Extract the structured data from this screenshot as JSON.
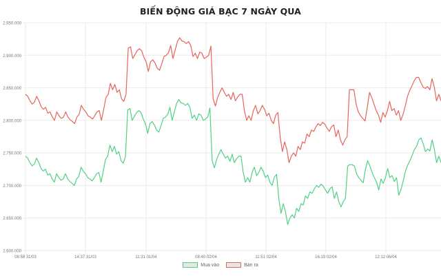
{
  "chart_data": {
    "type": "line",
    "title": "BIẾN ĐỘNG GIÁ BẠC 7 NGÀY QUA",
    "xlabel": "",
    "ylabel": "",
    "ylim": [
      2600000,
      2950000
    ],
    "y_ticks": [
      "2.600.000",
      "2.650.000",
      "2.700.000",
      "2.750.000",
      "2.800.000",
      "2.850.000",
      "2.900.000",
      "2.950.000"
    ],
    "x_tick_labels": [
      "08:58 31/03",
      "14:37 31/03",
      "11:31 01/04",
      "08:40 02/04",
      "11:51 02/04",
      "16:19 02/04",
      "12:12 06/04"
    ],
    "grid": true,
    "legend_position": "bottom",
    "series": [
      {
        "name": "Mua vào",
        "color": "#4fd184",
        "values": [
          2745000,
          2742000,
          2735000,
          2730000,
          2733000,
          2742000,
          2735000,
          2726000,
          2722000,
          2725000,
          2716000,
          2718000,
          2710000,
          2705000,
          2718000,
          2712000,
          2708000,
          2710000,
          2718000,
          2710000,
          2706000,
          2703000,
          2700000,
          2710000,
          2714000,
          2728000,
          2722000,
          2718000,
          2712000,
          2710000,
          2707000,
          2712000,
          2718000,
          2720000,
          2705000,
          2722000,
          2740000,
          2745000,
          2762000,
          2752000,
          2760000,
          2748000,
          2752000,
          2738000,
          2734000,
          2745000,
          2816000,
          2818000,
          2800000,
          2806000,
          2812000,
          2815000,
          2812000,
          2802000,
          2795000,
          2780000,
          2795000,
          2798000,
          2793000,
          2785000,
          2782000,
          2792000,
          2803000,
          2805000,
          2809000,
          2820000,
          2800000,
          2813000,
          2826000,
          2832000,
          2827000,
          2826000,
          2823000,
          2826000,
          2820000,
          2803000,
          2808000,
          2800000,
          2810000,
          2808000,
          2800000,
          2802000,
          2805000,
          2819000,
          2738000,
          2727000,
          2740000,
          2748000,
          2755000,
          2748000,
          2742000,
          2745000,
          2737000,
          2748000,
          2735000,
          2741000,
          2745000,
          2745000,
          2720000,
          2705000,
          2712000,
          2705000,
          2720000,
          2728000,
          2715000,
          2720000,
          2728000,
          2722000,
          2712000,
          2716000,
          2705000,
          2700000,
          2713000,
          2717000,
          2680000,
          2657000,
          2672000,
          2660000,
          2640000,
          2650000,
          2655000,
          2650000,
          2665000,
          2660000,
          2672000,
          2670000,
          2684000,
          2680000,
          2690000,
          2688000,
          2695000,
          2700000,
          2697000,
          2702000,
          2699000,
          2693000,
          2688000,
          2695000,
          2698000,
          2680000,
          2690000,
          2675000,
          2667000,
          2675000,
          2680000,
          2730000,
          2732000,
          2732000,
          2730000,
          2718000,
          2712000,
          2708000,
          2704000,
          2725000,
          2738000,
          2730000,
          2720000,
          2712000,
          2705000,
          2693000,
          2710000,
          2703000,
          2712000,
          2726000,
          2712000,
          2715000,
          2706000,
          2712000,
          2685000,
          2694000,
          2707000,
          2722000,
          2731000,
          2738000,
          2746000,
          2755000,
          2760000,
          2770000,
          2773000,
          2764000,
          2752000,
          2756000,
          2753000,
          2770000,
          2756000,
          2735000,
          2745000,
          2735000
        ]
      },
      {
        "name": "Bán ra",
        "color": "#e8635a",
        "values": [
          2840000,
          2837000,
          2830000,
          2825000,
          2828000,
          2837000,
          2830000,
          2821000,
          2817000,
          2820000,
          2811000,
          2813000,
          2805000,
          2800000,
          2813000,
          2807000,
          2803000,
          2805000,
          2813000,
          2805000,
          2801000,
          2798000,
          2795000,
          2805000,
          2809000,
          2823000,
          2817000,
          2813000,
          2807000,
          2805000,
          2802000,
          2807000,
          2813000,
          2815000,
          2800000,
          2817000,
          2835000,
          2840000,
          2857000,
          2847000,
          2855000,
          2843000,
          2847000,
          2833000,
          2829000,
          2840000,
          2911000,
          2913000,
          2895000,
          2901000,
          2907000,
          2910000,
          2907000,
          2897000,
          2890000,
          2875000,
          2890000,
          2893000,
          2888000,
          2880000,
          2877000,
          2887000,
          2898000,
          2900000,
          2904000,
          2915000,
          2895000,
          2908000,
          2921000,
          2927000,
          2922000,
          2921000,
          2918000,
          2921000,
          2915000,
          2898000,
          2903000,
          2895000,
          2905000,
          2903000,
          2895000,
          2897000,
          2900000,
          2914000,
          2833000,
          2822000,
          2835000,
          2843000,
          2850000,
          2843000,
          2837000,
          2840000,
          2832000,
          2843000,
          2830000,
          2836000,
          2840000,
          2840000,
          2815000,
          2800000,
          2807000,
          2800000,
          2815000,
          2823000,
          2810000,
          2815000,
          2823000,
          2817000,
          2807000,
          2811000,
          2800000,
          2795000,
          2808000,
          2812000,
          2775000,
          2752000,
          2767000,
          2755000,
          2735000,
          2745000,
          2750000,
          2745000,
          2760000,
          2755000,
          2767000,
          2765000,
          2779000,
          2775000,
          2785000,
          2783000,
          2790000,
          2795000,
          2792000,
          2797000,
          2794000,
          2788000,
          2783000,
          2790000,
          2793000,
          2775000,
          2785000,
          2770000,
          2762000,
          2770000,
          2775000,
          2847000,
          2847000,
          2847000,
          2825000,
          2813000,
          2807000,
          2803000,
          2799000,
          2820000,
          2843000,
          2835000,
          2825000,
          2815000,
          2808000,
          2797000,
          2812000,
          2805000,
          2815000,
          2829000,
          2815000,
          2818000,
          2808000,
          2815000,
          2800000,
          2809000,
          2822000,
          2837000,
          2846000,
          2853000,
          2861000,
          2866000,
          2866000,
          2858000,
          2851000,
          2849000,
          2852000,
          2847000,
          2864000,
          2851000,
          2830000,
          2840000,
          2830000
        ]
      }
    ]
  },
  "legend": {
    "items": [
      {
        "label": "Mua vào",
        "border": "#4fd184"
      },
      {
        "label": "Bán ra",
        "border": "#e8635a"
      }
    ]
  }
}
